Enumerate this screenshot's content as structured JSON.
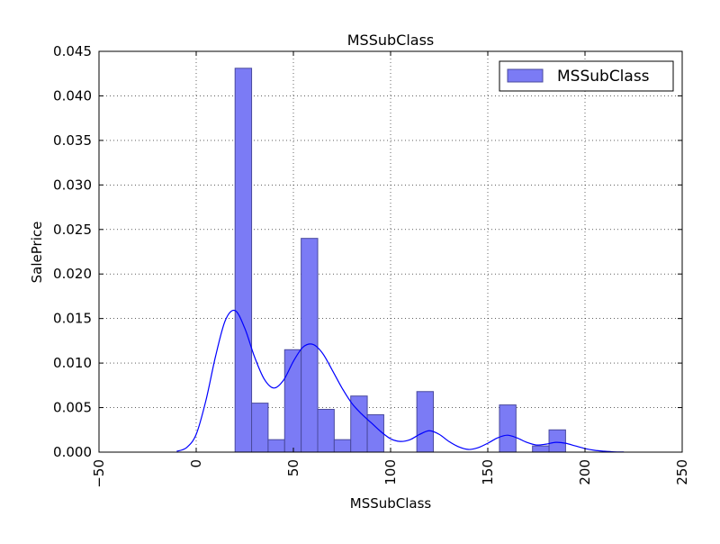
{
  "chart_data": {
    "type": "bar",
    "title": "MSSubClass",
    "xlabel": "MSSubClass",
    "ylabel": "SalePrice",
    "xlim": [
      -50,
      250
    ],
    "ylim": [
      0,
      0.045
    ],
    "grid": true,
    "x_ticks": [
      -50,
      0,
      50,
      100,
      150,
      200,
      250
    ],
    "x_tick_labels": [
      "−50",
      "0",
      "50",
      "100",
      "150",
      "200",
      "250"
    ],
    "y_ticks": [
      0,
      0.005,
      0.01,
      0.015,
      0.02,
      0.025,
      0.03,
      0.035,
      0.04,
      0.045
    ],
    "y_tick_labels": [
      "0.000",
      "0.005",
      "0.010",
      "0.015",
      "0.020",
      "0.025",
      "0.030",
      "0.035",
      "0.040",
      "0.045"
    ],
    "legend": {
      "position": "top-right",
      "entries": [
        "MSSubClass"
      ]
    },
    "colors": {
      "bar_fill": "#7b7bf5",
      "bar_edge": "#4a4a9e",
      "kde_line": "#0000ff"
    },
    "histogram": {
      "bin_width": 8.5,
      "bins": [
        {
          "start": 20.0,
          "value": 0.0431
        },
        {
          "start": 28.5,
          "value": 0.0055
        },
        {
          "start": 37.0,
          "value": 0.0014
        },
        {
          "start": 45.5,
          "value": 0.0115
        },
        {
          "start": 54.0,
          "value": 0.024
        },
        {
          "start": 62.5,
          "value": 0.0048
        },
        {
          "start": 71.0,
          "value": 0.0014
        },
        {
          "start": 79.5,
          "value": 0.0063
        },
        {
          "start": 88.0,
          "value": 0.0042
        },
        {
          "start": 96.5,
          "value": 0
        },
        {
          "start": 105.0,
          "value": 0
        },
        {
          "start": 113.5,
          "value": 0.0068
        },
        {
          "start": 122.0,
          "value": 0
        },
        {
          "start": 130.5,
          "value": 0
        },
        {
          "start": 139.0,
          "value": 0
        },
        {
          "start": 147.5,
          "value": 0
        },
        {
          "start": 156.0,
          "value": 0.0053
        },
        {
          "start": 164.5,
          "value": 0
        },
        {
          "start": 173.0,
          "value": 0.0007
        },
        {
          "start": 181.5,
          "value": 0.0025
        }
      ]
    },
    "kde": {
      "x": [
        -10,
        -5,
        0,
        5,
        10,
        15,
        20,
        25,
        30,
        35,
        40,
        45,
        50,
        55,
        60,
        65,
        70,
        75,
        80,
        85,
        90,
        95,
        100,
        105,
        110,
        115,
        120,
        125,
        130,
        135,
        140,
        145,
        150,
        155,
        160,
        165,
        170,
        175,
        180,
        185,
        190,
        195,
        200,
        205,
        210,
        215,
        220
      ],
      "y": [
        0.0001,
        0.0005,
        0.002,
        0.0058,
        0.0108,
        0.0148,
        0.0159,
        0.0139,
        0.0107,
        0.0082,
        0.0072,
        0.0081,
        0.0102,
        0.0118,
        0.0121,
        0.0111,
        0.0092,
        0.0072,
        0.0055,
        0.0043,
        0.0033,
        0.0023,
        0.0015,
        0.0012,
        0.0014,
        0.002,
        0.0024,
        0.002,
        0.0012,
        0.0006,
        0.0003,
        0.0005,
        0.001,
        0.0016,
        0.0019,
        0.0016,
        0.0011,
        0.0008,
        0.0009,
        0.0011,
        0.001,
        0.0007,
        0.0004,
        0.0002,
        0.0001,
        3e-05,
        1e-05
      ]
    }
  }
}
